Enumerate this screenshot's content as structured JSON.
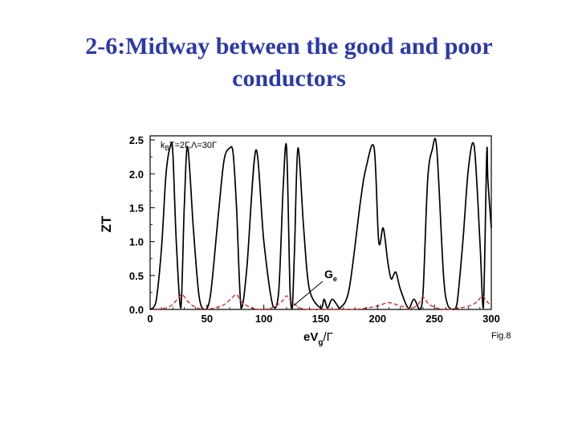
{
  "slide": {
    "title_line1": "2-6:Midway between the good and poor",
    "title_line2": "conductors"
  },
  "colors": {
    "title": "#2b3aa8",
    "zt_curve": "#000000",
    "ge_curve": "#cc2222"
  },
  "chart_data": {
    "type": "line",
    "title": "",
    "xlabel": "eV",
    "xlabel_sub": "g",
    "xlabel_tail": "/Γ",
    "ylabel": "ZT",
    "xlim": [
      0,
      300
    ],
    "ylim": [
      0,
      2.5
    ],
    "xticks": [
      "0",
      "50",
      "100",
      "150",
      "200",
      "250",
      "300"
    ],
    "yticks": [
      "0.0",
      "0.5",
      "1.0",
      "1.5",
      "2.0",
      "2.5"
    ],
    "legend_text": "k",
    "legend_sub": "B",
    "legend_tail": "T=2Γ,Λ=30Γ",
    "annotation": "G",
    "annotation_sub": "e",
    "figure_label": "Fig.8",
    "peak_positions": [
      18,
      27,
      33,
      48,
      70,
      80,
      93,
      113,
      123,
      127,
      153,
      167,
      197,
      212,
      237,
      252,
      267,
      285,
      297
    ],
    "series": [
      {
        "name": "ZT",
        "style": "solid",
        "x": [
          0,
          5,
          10,
          14,
          18,
          20,
          23,
          27,
          30,
          33,
          38,
          43,
          48,
          53,
          60,
          65,
          70,
          73,
          76,
          80,
          85,
          93,
          100,
          108,
          113,
          117,
          120,
          123,
          125,
          127,
          130,
          135,
          140,
          150,
          153,
          156,
          160,
          165,
          167,
          175,
          185,
          190,
          197,
          201,
          205,
          209,
          212,
          216,
          220,
          227,
          232,
          237,
          240,
          244,
          248,
          252,
          258,
          262,
          267,
          270,
          275,
          280,
          285,
          290,
          293,
          296,
          297,
          300
        ],
        "y": [
          0.0,
          0.1,
          0.9,
          2.0,
          2.42,
          2.3,
          1.0,
          0.02,
          1.5,
          2.4,
          1.2,
          0.2,
          0.0,
          0.2,
          1.4,
          2.2,
          2.38,
          2.3,
          1.5,
          0.02,
          0.6,
          2.35,
          1.0,
          0.05,
          0.25,
          1.8,
          2.38,
          0.3,
          0.02,
          0.9,
          2.38,
          1.2,
          0.3,
          0.02,
          0.15,
          0.02,
          0.15,
          0.05,
          0.02,
          0.3,
          1.6,
          2.1,
          2.38,
          1.0,
          1.2,
          0.7,
          0.45,
          0.55,
          0.3,
          0.02,
          0.15,
          0.0,
          0.25,
          1.9,
          2.35,
          2.38,
          0.5,
          0.05,
          0.0,
          0.1,
          1.0,
          2.1,
          2.4,
          1.0,
          0.02,
          2.3,
          1.9,
          1.2
        ]
      },
      {
        "name": "Ge",
        "style": "dashed",
        "x": [
          0,
          10,
          18,
          24,
          28,
          33,
          40,
          48,
          56,
          65,
          72,
          76,
          80,
          88,
          98,
          108,
          116,
          120,
          124,
          132,
          140,
          150,
          160,
          170,
          180,
          190,
          200,
          210,
          220,
          230,
          236,
          240,
          245,
          252,
          262,
          272,
          282,
          288,
          292,
          296,
          300
        ],
        "y": [
          0.0,
          0.01,
          0.05,
          0.15,
          0.22,
          0.12,
          0.03,
          0.0,
          0.02,
          0.07,
          0.17,
          0.22,
          0.12,
          0.03,
          0.0,
          0.03,
          0.12,
          0.2,
          0.12,
          0.02,
          0.0,
          0.0,
          0.0,
          0.0,
          0.0,
          0.02,
          0.05,
          0.1,
          0.05,
          0.02,
          0.08,
          0.18,
          0.08,
          0.02,
          0.0,
          0.02,
          0.06,
          0.12,
          0.2,
          0.12,
          0.05
        ]
      }
    ]
  }
}
